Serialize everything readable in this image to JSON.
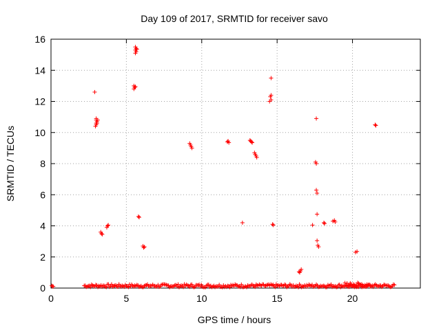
{
  "chart_data": {
    "type": "scatter",
    "title": "Day 109 of 2017, SRMTID for receiver savo",
    "xlabel": "GPS time / hours",
    "ylabel": "SRMTID / TECUs",
    "xlim": [
      0,
      24.5
    ],
    "ylim": [
      0,
      16
    ],
    "xticks": [
      "0",
      "5",
      "10",
      "15",
      "20"
    ],
    "yticks": [
      "0",
      "2",
      "4",
      "6",
      "8",
      "10",
      "12",
      "14",
      "16"
    ],
    "grid": true,
    "legend": "none",
    "marker": "plus",
    "colors": {
      "points": "#ff0000",
      "grid": "#a0a0a0",
      "axes": "#000000"
    },
    "series": [
      {
        "values": [
          [
            0.05,
            0.15
          ],
          [
            0.1,
            0.12
          ],
          [
            0.15,
            0.1
          ],
          [
            2.9,
            12.6
          ],
          [
            3.0,
            10.9
          ],
          [
            3.0,
            10.8
          ],
          [
            3.05,
            10.7
          ],
          [
            3.0,
            10.6
          ],
          [
            3.0,
            10.5
          ],
          [
            2.95,
            10.4
          ],
          [
            3.1,
            10.8
          ],
          [
            3.05,
            10.6
          ],
          [
            3.3,
            3.6
          ],
          [
            3.35,
            3.5
          ],
          [
            3.4,
            3.45
          ],
          [
            3.7,
            3.9
          ],
          [
            3.75,
            4.0
          ],
          [
            3.8,
            4.05
          ],
          [
            5.5,
            12.8
          ],
          [
            5.55,
            12.9
          ],
          [
            5.5,
            13.0
          ],
          [
            5.6,
            12.95
          ],
          [
            5.6,
            15.5
          ],
          [
            5.65,
            15.4
          ],
          [
            5.6,
            15.3
          ],
          [
            5.65,
            15.2
          ],
          [
            5.6,
            15.1
          ],
          [
            5.7,
            15.35
          ],
          [
            5.8,
            4.6
          ],
          [
            5.85,
            4.55
          ],
          [
            6.1,
            2.7
          ],
          [
            6.15,
            2.6
          ],
          [
            6.2,
            2.65
          ],
          [
            9.2,
            9.3
          ],
          [
            9.25,
            9.2
          ],
          [
            9.3,
            9.1
          ],
          [
            9.35,
            9.0
          ],
          [
            11.7,
            9.4
          ],
          [
            11.8,
            9.35
          ],
          [
            11.75,
            9.45
          ],
          [
            12.7,
            4.2
          ],
          [
            13.2,
            9.5
          ],
          [
            13.25,
            9.45
          ],
          [
            13.3,
            9.4
          ],
          [
            13.35,
            9.35
          ],
          [
            13.5,
            8.7
          ],
          [
            13.55,
            8.6
          ],
          [
            13.6,
            8.5
          ],
          [
            13.65,
            8.4
          ],
          [
            14.6,
            13.5
          ],
          [
            14.6,
            12.4
          ],
          [
            14.55,
            12.3
          ],
          [
            14.5,
            12.0
          ],
          [
            14.6,
            12.1
          ],
          [
            14.7,
            4.1
          ],
          [
            14.75,
            4.05
          ],
          [
            16.5,
            1.0
          ],
          [
            16.55,
            1.1
          ],
          [
            16.6,
            1.2
          ],
          [
            16.45,
            1.05
          ],
          [
            17.35,
            4.05
          ],
          [
            17.6,
            10.9
          ],
          [
            17.55,
            8.1
          ],
          [
            17.6,
            8.0
          ],
          [
            17.6,
            6.3
          ],
          [
            17.65,
            6.1
          ],
          [
            17.65,
            4.75
          ],
          [
            17.65,
            3.05
          ],
          [
            17.7,
            2.75
          ],
          [
            17.75,
            2.65
          ],
          [
            18.1,
            4.2
          ],
          [
            18.15,
            4.15
          ],
          [
            18.7,
            4.3
          ],
          [
            18.8,
            4.35
          ],
          [
            18.85,
            4.25
          ],
          [
            20.2,
            2.3
          ],
          [
            20.3,
            2.35
          ],
          [
            21.5,
            10.5
          ],
          [
            21.55,
            10.45
          ]
        ]
      }
    ],
    "baseline_ranges": [
      [
        2.2,
        22.8,
        0.05,
        0.25
      ],
      [
        19.5,
        21.2,
        0.05,
        0.35
      ]
    ]
  }
}
